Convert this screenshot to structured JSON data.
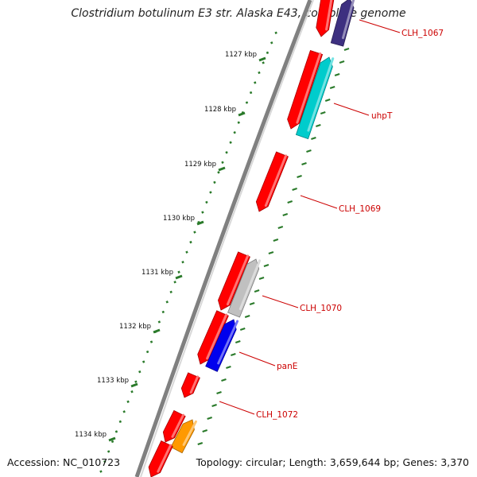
{
  "title": "Clostridium botulinum E3 str. Alaska E43, complete genome",
  "accession": "Accession: NC_010723",
  "summary": "Topology: circular; Length: 3,659,644 bp; Genes: 3,370",
  "scale_labels": [
    "1127 kbp",
    "1128 kbp",
    "1129 kbp",
    "1130 kbp",
    "1131 kbp",
    "1132 kbp",
    "1133 kbp",
    "1134 kbp"
  ],
  "gene_labels": [
    "CLH_1067",
    "uhpT",
    "CLH_1069",
    "CLH_1070",
    "panE",
    "CLH_1072"
  ],
  "colors": {
    "cds": "#ff0000",
    "purple": "#3d3080",
    "cyan": "#00cccc",
    "gray": "#c0c0c0",
    "blue": "#0000ee",
    "orange": "#ff9900",
    "ticks": "#2a7a2a",
    "backbone": "#808080",
    "labels": "#cc0000"
  }
}
